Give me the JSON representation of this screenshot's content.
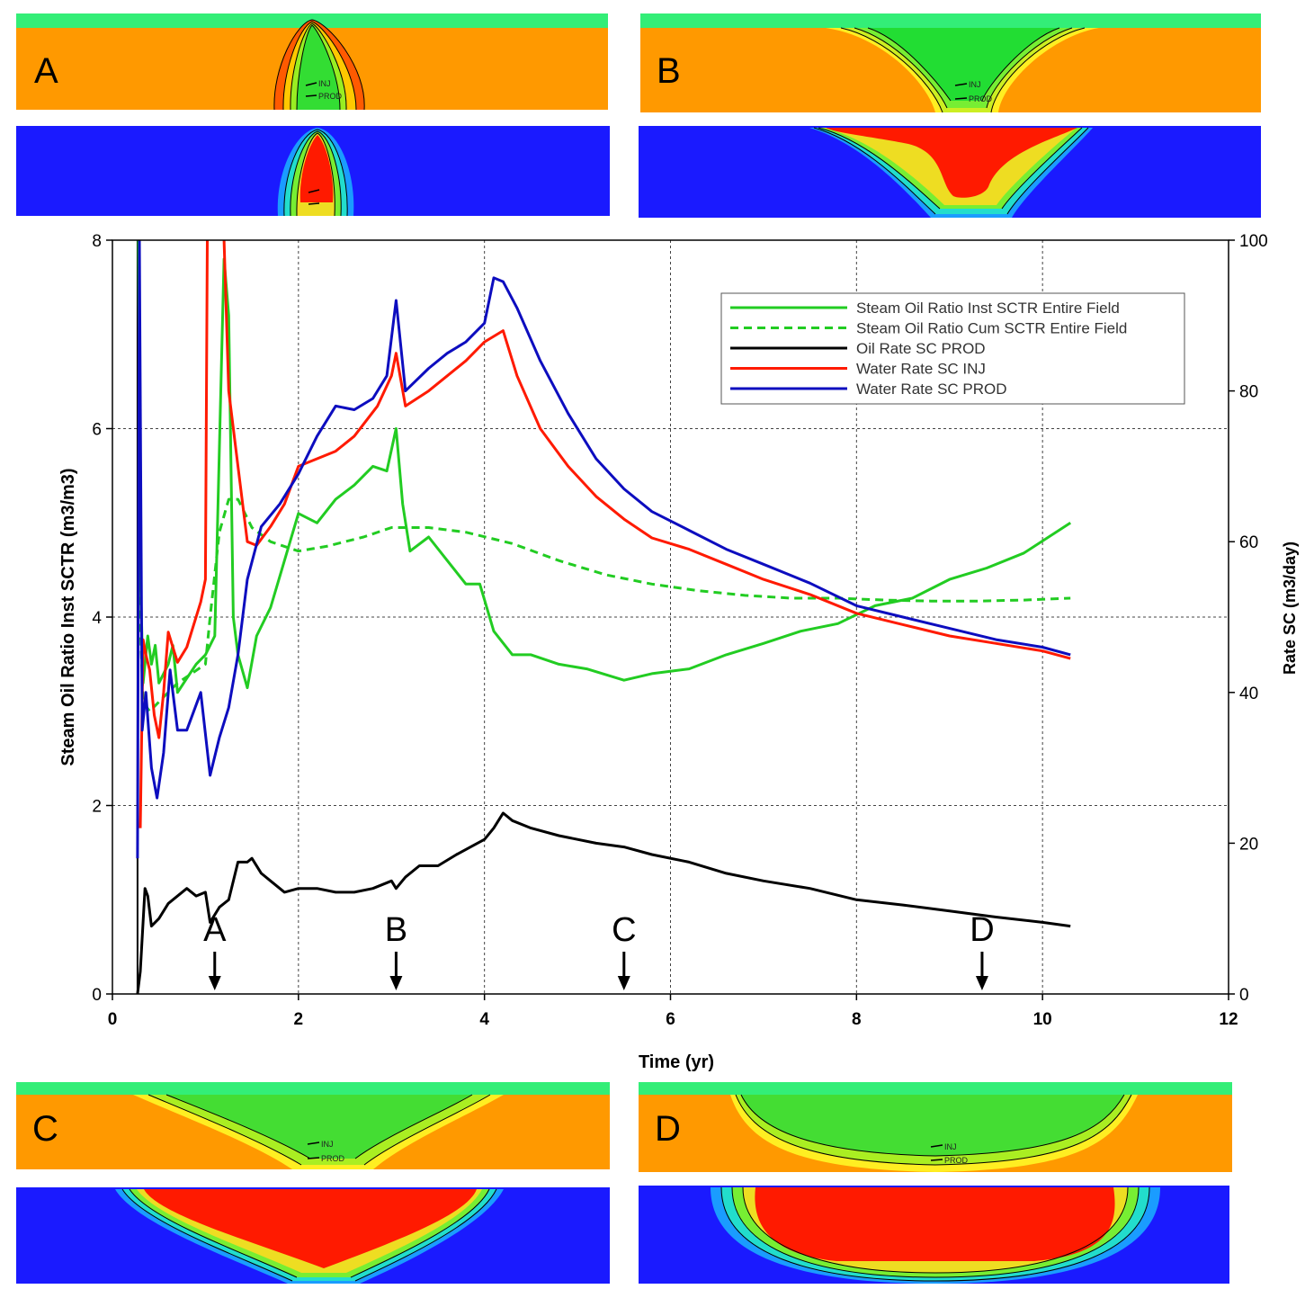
{
  "figure": {
    "panels": [
      {
        "id": "A",
        "label": "A"
      },
      {
        "id": "B",
        "label": "B"
      },
      {
        "id": "C",
        "label": "C"
      },
      {
        "id": "D",
        "label": "D"
      }
    ],
    "well_labels": {
      "inj": "INJ",
      "prod": "PROD"
    },
    "colors": {
      "oil": "#ff9900",
      "cap": "#33ee77",
      "water": "#1a1aff",
      "steam": "#ff1a00",
      "green": "#22cc22"
    }
  },
  "chart_data": {
    "type": "line",
    "xlabel": "Time (yr)",
    "ylabel": "Steam Oil Ratio Inst SCTR (m3/m3)",
    "y2label": "Rate SC (m3/day)",
    "xlim": [
      0,
      12
    ],
    "ylim": [
      0,
      8
    ],
    "y2lim": [
      0,
      100
    ],
    "xticks": [
      "0",
      "2",
      "4",
      "6",
      "8",
      "10",
      "12"
    ],
    "yticks": [
      "0",
      "2",
      "4",
      "6",
      "8"
    ],
    "y2ticks": [
      "0",
      "20",
      "40",
      "60",
      "80",
      "100"
    ],
    "grid": true,
    "legend_position": "top-right",
    "markers": [
      {
        "label": "A",
        "x": 1.1
      },
      {
        "label": "B",
        "x": 3.05
      },
      {
        "label": "C",
        "x": 5.5
      },
      {
        "label": "D",
        "x": 9.35
      }
    ],
    "series": [
      {
        "name": "Steam Oil Ratio Inst SCTR Entire  Field",
        "axis": "left",
        "color": "#22cc22",
        "dash": false,
        "points": [
          [
            0.28,
            8
          ],
          [
            0.3,
            4.5
          ],
          [
            0.33,
            3.3
          ],
          [
            0.38,
            3.8
          ],
          [
            0.42,
            3.5
          ],
          [
            0.46,
            3.7
          ],
          [
            0.5,
            3.3
          ],
          [
            0.55,
            3.4
          ],
          [
            0.6,
            3.5
          ],
          [
            0.65,
            3.7
          ],
          [
            0.7,
            3.2
          ],
          [
            0.8,
            3.35
          ],
          [
            0.9,
            3.5
          ],
          [
            1.0,
            3.6
          ],
          [
            1.1,
            3.8
          ],
          [
            1.2,
            7.8
          ],
          [
            1.25,
            7.2
          ],
          [
            1.3,
            4.0
          ],
          [
            1.35,
            3.6
          ],
          [
            1.45,
            3.25
          ],
          [
            1.55,
            3.8
          ],
          [
            1.7,
            4.1
          ],
          [
            1.85,
            4.6
          ],
          [
            2.0,
            5.1
          ],
          [
            2.2,
            5.0
          ],
          [
            2.4,
            5.25
          ],
          [
            2.6,
            5.4
          ],
          [
            2.8,
            5.6
          ],
          [
            2.95,
            5.55
          ],
          [
            3.05,
            6.0
          ],
          [
            3.12,
            5.2
          ],
          [
            3.2,
            4.7
          ],
          [
            3.4,
            4.85
          ],
          [
            3.6,
            4.6
          ],
          [
            3.8,
            4.35
          ],
          [
            3.95,
            4.35
          ],
          [
            4.1,
            3.85
          ],
          [
            4.3,
            3.6
          ],
          [
            4.5,
            3.6
          ],
          [
            4.8,
            3.5
          ],
          [
            5.1,
            3.45
          ],
          [
            5.5,
            3.33
          ],
          [
            5.8,
            3.4
          ],
          [
            6.2,
            3.45
          ],
          [
            6.6,
            3.6
          ],
          [
            7.0,
            3.72
          ],
          [
            7.4,
            3.85
          ],
          [
            7.8,
            3.93
          ],
          [
            8.2,
            4.12
          ],
          [
            8.6,
            4.2
          ],
          [
            9.0,
            4.4
          ],
          [
            9.4,
            4.52
          ],
          [
            9.8,
            4.68
          ],
          [
            10.3,
            5.0
          ]
        ]
      },
      {
        "name": "Steam Oil Ratio Cum SCTR Entire  Field",
        "axis": "left",
        "color": "#22cc22",
        "dash": true,
        "points": [
          [
            0.28,
            4.5
          ],
          [
            0.33,
            3.1
          ],
          [
            0.4,
            3.0
          ],
          [
            0.55,
            3.15
          ],
          [
            0.7,
            3.3
          ],
          [
            0.85,
            3.4
          ],
          [
            1.0,
            3.5
          ],
          [
            1.05,
            4.0
          ],
          [
            1.15,
            4.9
          ],
          [
            1.25,
            5.25
          ],
          [
            1.35,
            5.25
          ],
          [
            1.5,
            4.95
          ],
          [
            1.7,
            4.8
          ],
          [
            2.0,
            4.7
          ],
          [
            2.3,
            4.75
          ],
          [
            2.7,
            4.85
          ],
          [
            3.0,
            4.95
          ],
          [
            3.4,
            4.95
          ],
          [
            3.8,
            4.9
          ],
          [
            4.3,
            4.78
          ],
          [
            4.8,
            4.6
          ],
          [
            5.3,
            4.45
          ],
          [
            5.8,
            4.35
          ],
          [
            6.3,
            4.28
          ],
          [
            6.8,
            4.23
          ],
          [
            7.3,
            4.2
          ],
          [
            7.8,
            4.2
          ],
          [
            8.3,
            4.18
          ],
          [
            8.8,
            4.17
          ],
          [
            9.3,
            4.17
          ],
          [
            9.8,
            4.18
          ],
          [
            10.3,
            4.2
          ]
        ]
      },
      {
        "name": "Oil Rate SC PROD",
        "axis": "right",
        "color": "#000000",
        "dash": false,
        "points": [
          [
            0.27,
            0
          ],
          [
            0.3,
            3
          ],
          [
            0.35,
            14
          ],
          [
            0.38,
            13
          ],
          [
            0.42,
            9
          ],
          [
            0.5,
            10
          ],
          [
            0.55,
            11
          ],
          [
            0.6,
            12
          ],
          [
            0.7,
            13
          ],
          [
            0.8,
            14
          ],
          [
            0.9,
            13
          ],
          [
            1.0,
            13.5
          ],
          [
            1.05,
            9.5
          ],
          [
            1.15,
            11.5
          ],
          [
            1.25,
            12.5
          ],
          [
            1.35,
            17.5
          ],
          [
            1.45,
            17.5
          ],
          [
            1.5,
            18
          ],
          [
            1.6,
            16
          ],
          [
            1.7,
            15
          ],
          [
            1.85,
            13.5
          ],
          [
            2.0,
            14
          ],
          [
            2.2,
            14
          ],
          [
            2.4,
            13.5
          ],
          [
            2.6,
            13.5
          ],
          [
            2.8,
            14
          ],
          [
            3.0,
            15
          ],
          [
            3.05,
            14
          ],
          [
            3.15,
            15.5
          ],
          [
            3.3,
            17
          ],
          [
            3.5,
            17
          ],
          [
            3.7,
            18.5
          ],
          [
            3.85,
            19.5
          ],
          [
            4.0,
            20.5
          ],
          [
            4.1,
            22
          ],
          [
            4.2,
            24
          ],
          [
            4.3,
            23
          ],
          [
            4.5,
            22
          ],
          [
            4.8,
            21
          ],
          [
            5.2,
            20
          ],
          [
            5.5,
            19.5
          ],
          [
            5.8,
            18.5
          ],
          [
            6.2,
            17.5
          ],
          [
            6.6,
            16
          ],
          [
            7.0,
            15
          ],
          [
            7.5,
            14
          ],
          [
            8.0,
            12.5
          ],
          [
            8.5,
            11.8
          ],
          [
            9.0,
            11
          ],
          [
            9.5,
            10.2
          ],
          [
            10.0,
            9.5
          ],
          [
            10.3,
            9
          ]
        ]
      },
      {
        "name": "Water Rate SC INJ",
        "axis": "right",
        "color": "#ff1a00",
        "dash": false,
        "points": [
          [
            0.3,
            22
          ],
          [
            0.33,
            47
          ],
          [
            0.36,
            45
          ],
          [
            0.4,
            43
          ],
          [
            0.45,
            37
          ],
          [
            0.5,
            34
          ],
          [
            0.55,
            40
          ],
          [
            0.6,
            48
          ],
          [
            0.65,
            46
          ],
          [
            0.7,
            44
          ],
          [
            0.8,
            46
          ],
          [
            0.95,
            52
          ],
          [
            1.0,
            55
          ],
          [
            1.02,
            100
          ],
          [
            1.1,
            110
          ],
          [
            1.2,
            100
          ],
          [
            1.25,
            80
          ],
          [
            1.35,
            70
          ],
          [
            1.45,
            60
          ],
          [
            1.55,
            59.5
          ],
          [
            1.7,
            62
          ],
          [
            1.85,
            65
          ],
          [
            2.0,
            70
          ],
          [
            2.2,
            71
          ],
          [
            2.4,
            72
          ],
          [
            2.6,
            74
          ],
          [
            2.85,
            78
          ],
          [
            3.0,
            82
          ],
          [
            3.05,
            85
          ],
          [
            3.15,
            78
          ],
          [
            3.4,
            80
          ],
          [
            3.6,
            82
          ],
          [
            3.8,
            84
          ],
          [
            4.0,
            86.5
          ],
          [
            4.2,
            88
          ],
          [
            4.35,
            82
          ],
          [
            4.6,
            75
          ],
          [
            4.9,
            70
          ],
          [
            5.2,
            66
          ],
          [
            5.5,
            63
          ],
          [
            5.8,
            60.5
          ],
          [
            6.2,
            59
          ],
          [
            6.6,
            57
          ],
          [
            7.0,
            55
          ],
          [
            7.5,
            53
          ],
          [
            8.0,
            50.5
          ],
          [
            8.5,
            49
          ],
          [
            9.0,
            47.5
          ],
          [
            9.5,
            46.5
          ],
          [
            10.0,
            45.5
          ],
          [
            10.3,
            44.5
          ]
        ]
      },
      {
        "name": "Water Rate SC PROD",
        "axis": "right",
        "color": "#0d0dbf",
        "dash": false,
        "points": [
          [
            0.27,
            18
          ],
          [
            0.29,
            100
          ],
          [
            0.32,
            35
          ],
          [
            0.36,
            40
          ],
          [
            0.42,
            30
          ],
          [
            0.48,
            26
          ],
          [
            0.55,
            32
          ],
          [
            0.62,
            43
          ],
          [
            0.7,
            35
          ],
          [
            0.8,
            35
          ],
          [
            0.95,
            40
          ],
          [
            1.05,
            29
          ],
          [
            1.15,
            34
          ],
          [
            1.25,
            38
          ],
          [
            1.35,
            45
          ],
          [
            1.45,
            55
          ],
          [
            1.6,
            62
          ],
          [
            1.8,
            65
          ],
          [
            2.0,
            69
          ],
          [
            2.2,
            74
          ],
          [
            2.4,
            78
          ],
          [
            2.6,
            77.5
          ],
          [
            2.8,
            79
          ],
          [
            2.95,
            82
          ],
          [
            3.05,
            92
          ],
          [
            3.15,
            80
          ],
          [
            3.4,
            83
          ],
          [
            3.6,
            85
          ],
          [
            3.8,
            86.5
          ],
          [
            4.0,
            89
          ],
          [
            4.1,
            95
          ],
          [
            4.2,
            94.5
          ],
          [
            4.35,
            91
          ],
          [
            4.6,
            84
          ],
          [
            4.9,
            77
          ],
          [
            5.2,
            71
          ],
          [
            5.5,
            67
          ],
          [
            5.8,
            64
          ],
          [
            6.2,
            61.5
          ],
          [
            6.6,
            59
          ],
          [
            7.0,
            57
          ],
          [
            7.5,
            54.5
          ],
          [
            8.0,
            51.5
          ],
          [
            8.5,
            50
          ],
          [
            9.0,
            48.5
          ],
          [
            9.5,
            47
          ],
          [
            10.0,
            46
          ],
          [
            10.3,
            45
          ]
        ]
      }
    ]
  }
}
